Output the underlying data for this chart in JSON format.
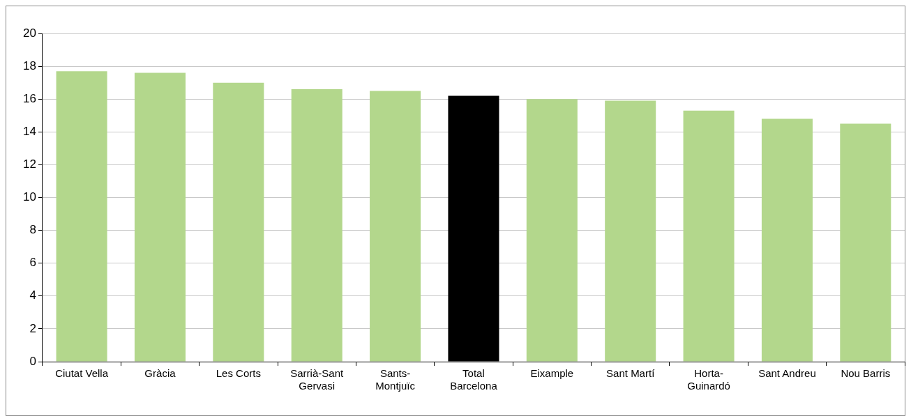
{
  "chart_data": {
    "type": "bar",
    "categories": [
      "Ciutat Vella",
      "Gràcia",
      "Les Corts",
      "Sarrià-Sant Gervasi",
      "Sants-Montjuïc",
      "Total Barcelona",
      "Eixample",
      "Sant Martí",
      "Horta-Guinardó",
      "Sant Andreu",
      "Nou Barris"
    ],
    "values": [
      17.7,
      17.6,
      17.0,
      16.6,
      16.5,
      16.2,
      16.0,
      15.9,
      15.3,
      14.8,
      14.5
    ],
    "colors": [
      "#b3d78c",
      "#b3d78c",
      "#b3d78c",
      "#b3d78c",
      "#b3d78c",
      "#000000",
      "#b3d78c",
      "#b3d78c",
      "#b3d78c",
      "#b3d78c",
      "#b3d78c"
    ],
    "ylim": [
      0,
      20
    ],
    "yticks": [
      0,
      2,
      4,
      6,
      8,
      10,
      12,
      14,
      16,
      18,
      20
    ],
    "grid": "y",
    "legend": false
  }
}
